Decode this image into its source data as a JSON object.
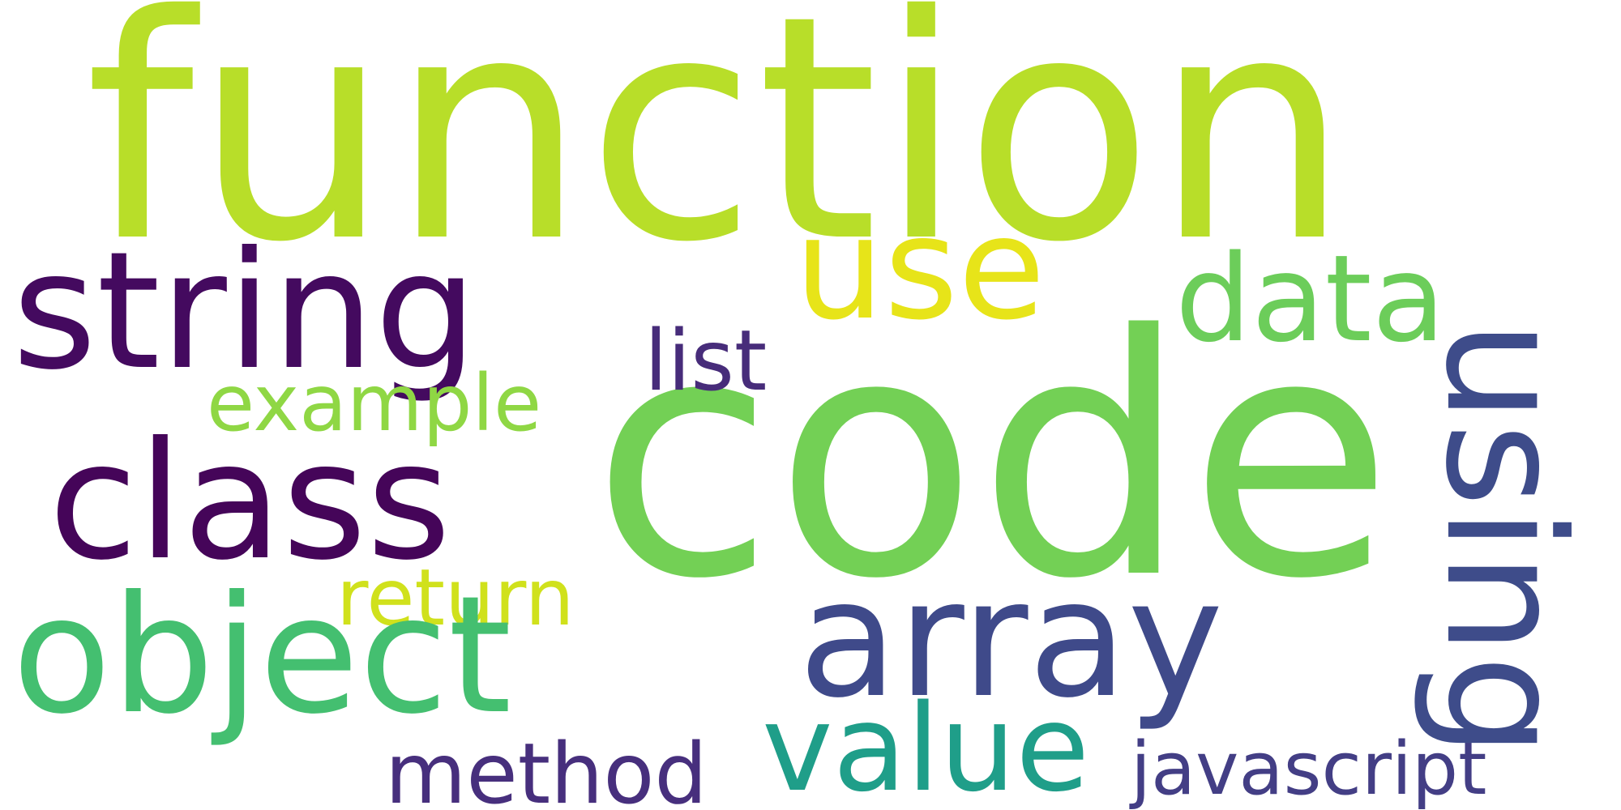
{
  "words": {
    "function": {
      "text": "function",
      "color": "#b8de29"
    },
    "code": {
      "text": "code",
      "color": "#73d055"
    },
    "string": {
      "text": "string",
      "color": "#440a5f"
    },
    "use": {
      "text": "use",
      "color": "#e7e419"
    },
    "data": {
      "text": "data",
      "color": "#6ccd5a"
    },
    "list": {
      "text": "list",
      "color": "#472c7a"
    },
    "example": {
      "text": "example",
      "color": "#8fd744"
    },
    "class": {
      "text": "class",
      "color": "#450559"
    },
    "return": {
      "text": "return",
      "color": "#d0e11c"
    },
    "object": {
      "text": "object",
      "color": "#44bf70"
    },
    "array": {
      "text": "array",
      "color": "#3f4a8a"
    },
    "value": {
      "text": "value",
      "color": "#1f9e89"
    },
    "method": {
      "text": "method",
      "color": "#472f7d"
    },
    "javascript": {
      "text": "javascript",
      "color": "#433e85"
    },
    "using": {
      "text": "using",
      "color": "#3e4c8a"
    }
  }
}
